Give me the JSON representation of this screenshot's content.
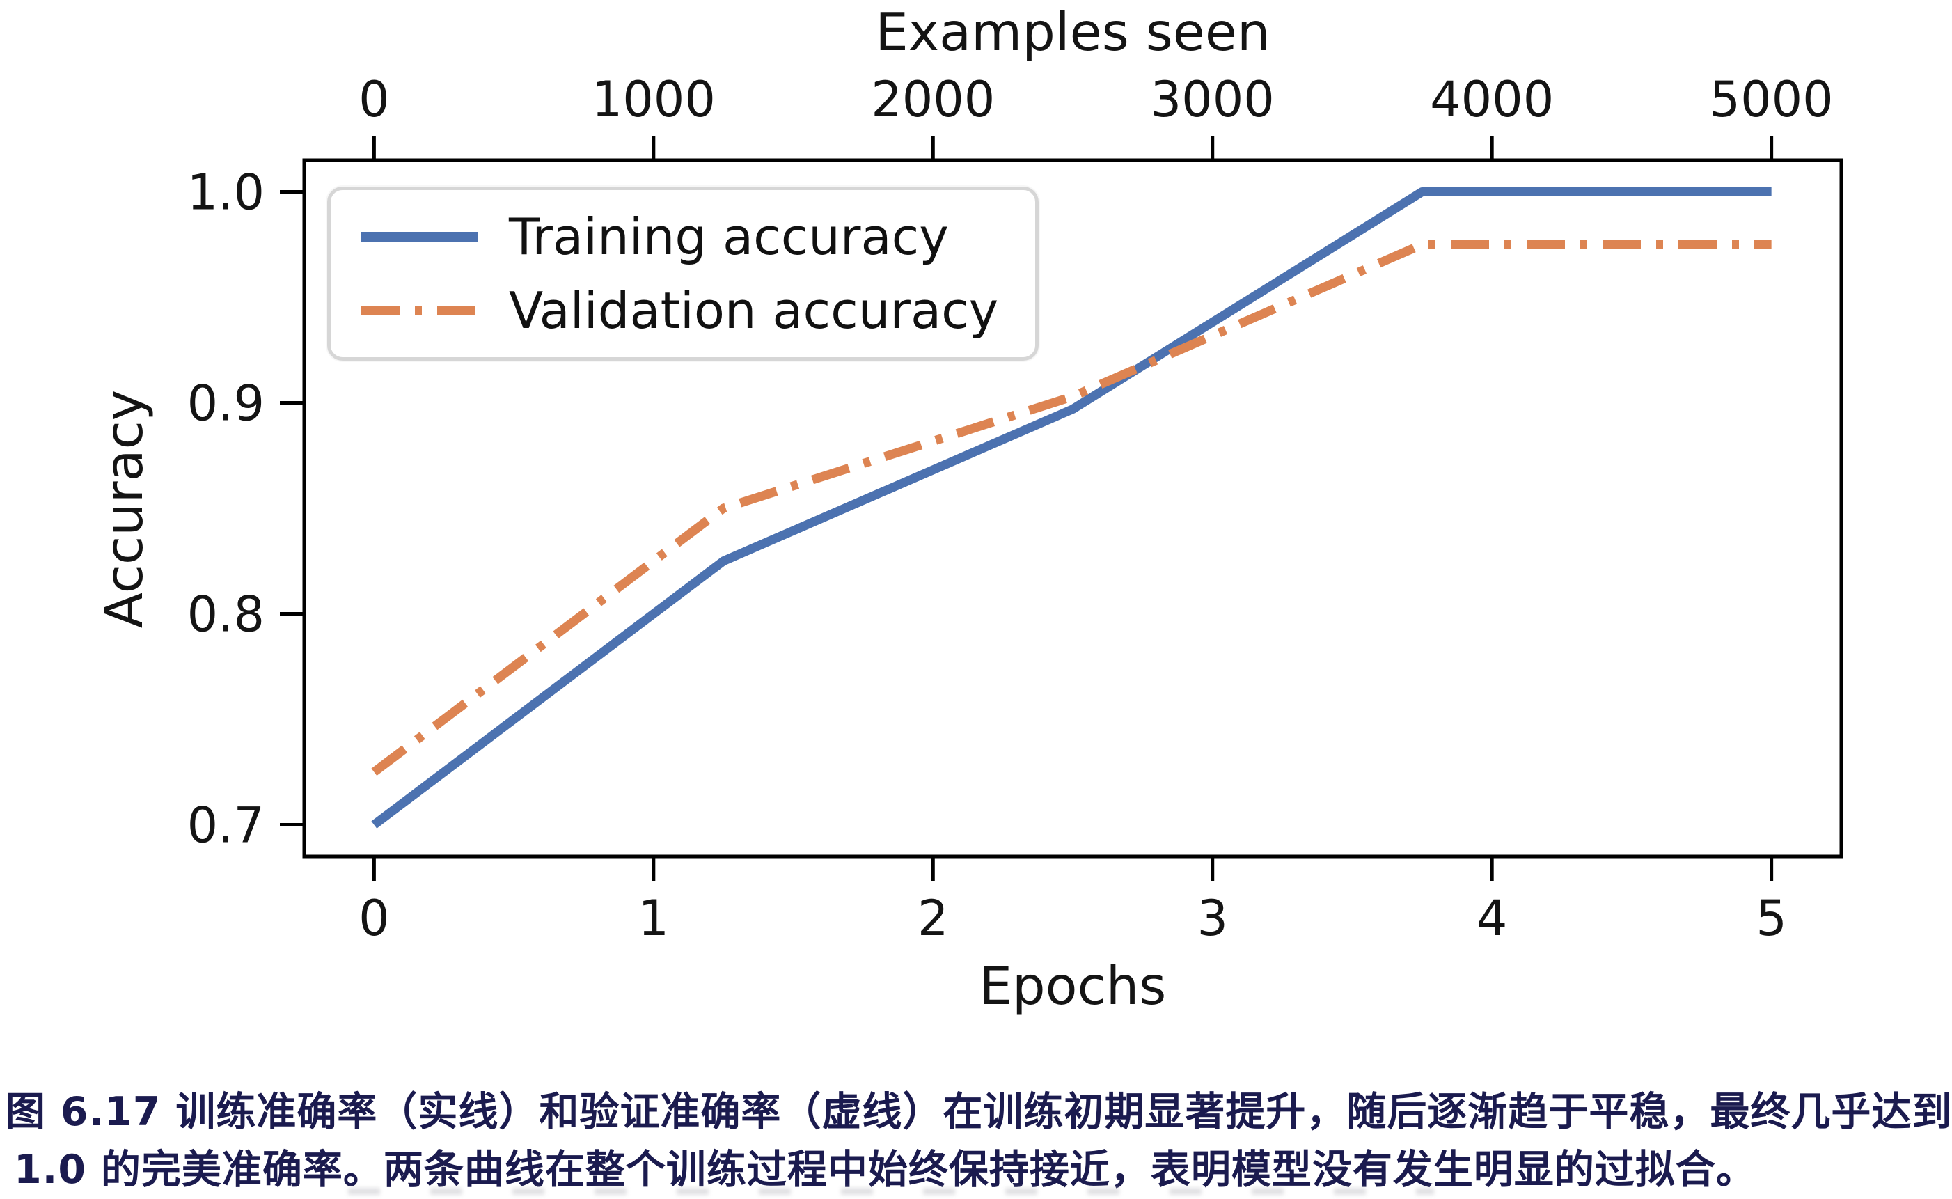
{
  "figure": {
    "caption_line1": "图 6.17 训练准确率（实线）和验证准确率（虚线）在训练初期显著提升，随后逐渐趋于平稳，最终几乎达到",
    "caption_line2": "1.0 的完美准确率。两条曲线在整个训练过程中始终保持接近，表明模型没有发生明显的过拟合。"
  },
  "chart_data": {
    "type": "line",
    "title": "",
    "top_xlabel": "Examples seen",
    "xlabel": "Epochs",
    "ylabel": "Accuracy",
    "x_tick_labels": [
      "0",
      "1",
      "2",
      "3",
      "4",
      "5"
    ],
    "top_x_tick_labels": [
      "0",
      "1000",
      "2000",
      "3000",
      "4000",
      "5000"
    ],
    "y_tick_labels": [
      "1.0",
      "0.9",
      "0.8",
      "0.7"
    ],
    "xlim": [
      -0.25,
      5.25
    ],
    "ylim": [
      0.685,
      1.015
    ],
    "grid": "off",
    "legend_position": "upper-left",
    "axis_color": "#000000",
    "series": [
      {
        "name": "Training accuracy",
        "style": "solid",
        "color": "#4c72b0",
        "x": [
          0,
          1.25,
          2.5,
          3.75,
          5
        ],
        "y": [
          0.7,
          0.825,
          0.897,
          1.0,
          1.0
        ]
      },
      {
        "name": "Validation accuracy",
        "style": "dash-dot",
        "color": "#dd8452",
        "x": [
          0,
          1.25,
          2.5,
          3.75,
          5
        ],
        "y": [
          0.725,
          0.85,
          0.903,
          0.975,
          0.975
        ]
      }
    ]
  }
}
